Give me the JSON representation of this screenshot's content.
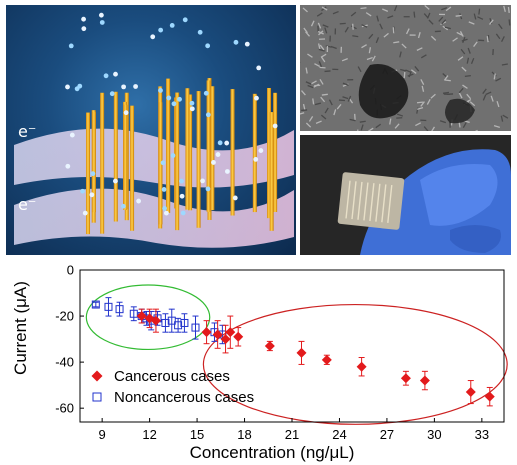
{
  "figure": {
    "illustration": {
      "electron_label_top": "e⁻",
      "electron_label_bottom": "e⁻"
    }
  },
  "chart_data": {
    "type": "scatter",
    "xlabel": "Concentration (ng/μL)",
    "ylabel": "Current (μA)",
    "xlim": [
      7.6,
      34.4
    ],
    "ylim": [
      -66,
      0
    ],
    "xticks": [
      9,
      12,
      15,
      18,
      21,
      24,
      27,
      30,
      33
    ],
    "yticks": [
      0,
      -20,
      -40,
      -60
    ],
    "legend_position": "bottom-left",
    "colors": {
      "cancerous": "#e31a1c",
      "noncancerous": "#2233cc",
      "green_ellipse": "#33bb33",
      "red_ellipse": "#cc2222"
    },
    "series": [
      {
        "name": "Cancerous cases",
        "marker": "filled-diamond",
        "color": "#e31a1c",
        "points": [
          {
            "x": 11.5,
            "y": -20,
            "err": 3
          },
          {
            "x": 12.0,
            "y": -21,
            "err": 4
          },
          {
            "x": 12.4,
            "y": -22,
            "err": 5
          },
          {
            "x": 15.6,
            "y": -27,
            "err": 5
          },
          {
            "x": 16.3,
            "y": -28,
            "err": 6
          },
          {
            "x": 16.8,
            "y": -30,
            "err": 6
          },
          {
            "x": 17.1,
            "y": -27,
            "err": 7
          },
          {
            "x": 17.6,
            "y": -29,
            "err": 4
          },
          {
            "x": 19.6,
            "y": -33,
            "err": 2
          },
          {
            "x": 21.6,
            "y": -36,
            "err": 5
          },
          {
            "x": 23.2,
            "y": -39,
            "err": 2
          },
          {
            "x": 25.4,
            "y": -42,
            "err": 4
          },
          {
            "x": 28.2,
            "y": -47,
            "err": 3
          },
          {
            "x": 29.4,
            "y": -48,
            "err": 4
          },
          {
            "x": 32.3,
            "y": -53,
            "err": 5
          },
          {
            "x": 33.5,
            "y": -55,
            "err": 4
          }
        ]
      },
      {
        "name": "Noncancerous cases",
        "marker": "hollow-square",
        "color": "#2233cc",
        "points": [
          {
            "x": 8.6,
            "y": -15,
            "err": 1
          },
          {
            "x": 9.4,
            "y": -16,
            "err": 4
          },
          {
            "x": 10.1,
            "y": -17,
            "err": 3
          },
          {
            "x": 11.0,
            "y": -19,
            "err": 3
          },
          {
            "x": 11.5,
            "y": -20,
            "err": 3
          },
          {
            "x": 11.8,
            "y": -21,
            "err": 3
          },
          {
            "x": 12.1,
            "y": -22,
            "err": 4
          },
          {
            "x": 12.5,
            "y": -21,
            "err": 3
          },
          {
            "x": 13.0,
            "y": -23,
            "err": 4
          },
          {
            "x": 13.4,
            "y": -22,
            "err": 5
          },
          {
            "x": 13.8,
            "y": -24,
            "err": 3
          },
          {
            "x": 14.2,
            "y": -23,
            "err": 4
          },
          {
            "x": 14.9,
            "y": -25,
            "err": 5
          },
          {
            "x": 16.1,
            "y": -27,
            "err": 4
          },
          {
            "x": 16.6,
            "y": -28,
            "err": 4
          }
        ]
      }
    ],
    "ellipses": [
      {
        "color": "green",
        "cx": 11.9,
        "cy": -20.5,
        "rx": 3.9,
        "ry": 14
      },
      {
        "color": "red",
        "cx": 25.0,
        "cy": -41,
        "rx": 9.6,
        "ry": 26
      }
    ]
  }
}
